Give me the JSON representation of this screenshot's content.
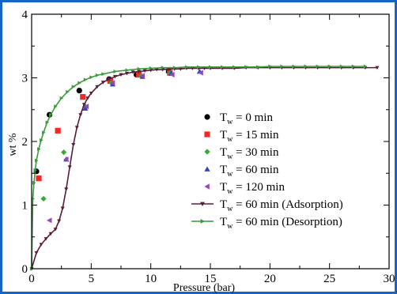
{
  "chart_data": {
    "type": "scatter",
    "title": "",
    "xlabel": "Pressure (bar)",
    "ylabel": "wt %",
    "xlim": [
      0,
      30
    ],
    "ylim": [
      0,
      4
    ],
    "xticks": [
      0,
      5,
      10,
      15,
      20,
      25,
      30
    ],
    "yticks": [
      0,
      1,
      2,
      3,
      4
    ],
    "grid": false,
    "legend_position": "center-right",
    "series": [
      {
        "name": "T_w = 0 min",
        "label_main": "T",
        "label_sub": "w",
        "label_rest": " = 0 min",
        "kind": "markers",
        "marker": "circle",
        "color": "#000000",
        "x": [
          0.4,
          1.5,
          4.0,
          6.5,
          8.8,
          11.5
        ],
        "y": [
          1.53,
          2.42,
          2.8,
          2.98,
          3.05,
          3.1
        ]
      },
      {
        "name": "T_w = 15 min",
        "label_main": "T",
        "label_sub": "w",
        "label_rest": " = 15 min",
        "kind": "markers",
        "marker": "square",
        "color": "#ee2a24",
        "x": [
          0.6,
          2.2,
          4.3,
          6.6,
          9.0,
          11.6
        ],
        "y": [
          1.42,
          2.17,
          2.7,
          2.95,
          3.05,
          3.08
        ]
      },
      {
        "name": "T_w = 30 min",
        "label_main": "T",
        "label_sub": "w",
        "label_rest": " = 30 min",
        "kind": "markers",
        "marker": "diamond",
        "color": "#33aa33",
        "x": [
          1.0,
          2.7,
          4.5,
          6.7,
          9.2,
          11.6
        ],
        "y": [
          1.1,
          1.83,
          2.55,
          2.92,
          3.03,
          3.07
        ]
      },
      {
        "name": "T_w = 60 min",
        "label_main": "T",
        "label_sub": "w",
        "label_rest": " = 60 min",
        "kind": "markers",
        "marker": "triangle",
        "color": "#3344bb",
        "x": [
          2.9,
          4.5,
          6.8,
          9.3,
          11.7,
          14.1
        ],
        "y": [
          1.72,
          2.52,
          2.9,
          3.02,
          3.07,
          3.1
        ]
      },
      {
        "name": "T_w = 120 min",
        "label_main": "T",
        "label_sub": "w",
        "label_rest": " = 120 min",
        "kind": "markers",
        "marker": "triangle-left",
        "color": "#9944bb",
        "x": [
          1.5,
          2.9,
          4.6,
          6.8,
          9.3,
          11.8,
          14.2
        ],
        "y": [
          0.76,
          1.72,
          2.55,
          2.92,
          3.03,
          3.05,
          3.08
        ]
      },
      {
        "name": "T_w = 60 min (Adsorption)",
        "label_main": "T",
        "label_sub": "w",
        "label_rest": " = 60 min (Adsorption)",
        "kind": "line",
        "marker": "triangle-down",
        "color": "#5a1a3a",
        "x": [
          0,
          0.4,
          0.8,
          1.2,
          1.6,
          2.0,
          2.3,
          2.6,
          2.9,
          3.2,
          3.5,
          3.8,
          4.1,
          4.4,
          4.7,
          5.0,
          5.5,
          6.0,
          6.5,
          7.0,
          7.5,
          8.0,
          8.5,
          9.0,
          9.5,
          10.0,
          10.5,
          11.0,
          11.5,
          12.0,
          12.5,
          13.0,
          13.5,
          14.0,
          14.5,
          15.0,
          16.0,
          17.0,
          18.0,
          19.0,
          20.0,
          21.0,
          22.0,
          23.0,
          24.0,
          25.0,
          26.0,
          27.0,
          28.0,
          29.0
        ],
        "y": [
          0.0,
          0.25,
          0.38,
          0.47,
          0.55,
          0.62,
          0.75,
          0.95,
          1.25,
          1.6,
          1.95,
          2.22,
          2.42,
          2.58,
          2.68,
          2.76,
          2.86,
          2.93,
          2.98,
          3.02,
          3.05,
          3.07,
          3.09,
          3.1,
          3.11,
          3.12,
          3.13,
          3.13,
          3.14,
          3.14,
          3.14,
          3.15,
          3.15,
          3.15,
          3.15,
          3.15,
          3.15,
          3.15,
          3.16,
          3.16,
          3.16,
          3.16,
          3.16,
          3.16,
          3.16,
          3.16,
          3.16,
          3.16,
          3.16,
          3.16
        ]
      },
      {
        "name": "T_w = 60 min (Desorption)",
        "label_main": "T",
        "label_sub": "w",
        "label_rest": " = 60 min (Desorption)",
        "kind": "line",
        "marker": "triangle-right",
        "color": "#3c9a3c",
        "x": [
          0.0,
          0.1,
          0.2,
          0.3,
          0.4,
          0.6,
          0.8,
          1.0,
          1.3,
          1.6,
          2.0,
          2.5,
          3.0,
          3.5,
          4.0,
          4.5,
          5.0,
          5.5,
          6.0,
          7.0,
          8.0,
          9.0,
          10.0,
          11.0,
          12.0,
          13.0,
          14.0,
          15.0,
          16.0,
          17.0,
          18.0,
          19.0,
          20.0,
          21.0,
          22.0,
          23.0,
          24.0,
          25.0,
          26.0,
          27.0,
          28.0
        ],
        "y": [
          0.0,
          1.1,
          1.35,
          1.55,
          1.7,
          1.88,
          2.02,
          2.14,
          2.3,
          2.42,
          2.55,
          2.68,
          2.78,
          2.86,
          2.92,
          2.97,
          3.01,
          3.04,
          3.06,
          3.1,
          3.12,
          3.14,
          3.15,
          3.16,
          3.16,
          3.17,
          3.17,
          3.17,
          3.17,
          3.17,
          3.17,
          3.17,
          3.18,
          3.18,
          3.18,
          3.18,
          3.18,
          3.18,
          3.18,
          3.18,
          3.18
        ]
      }
    ]
  }
}
